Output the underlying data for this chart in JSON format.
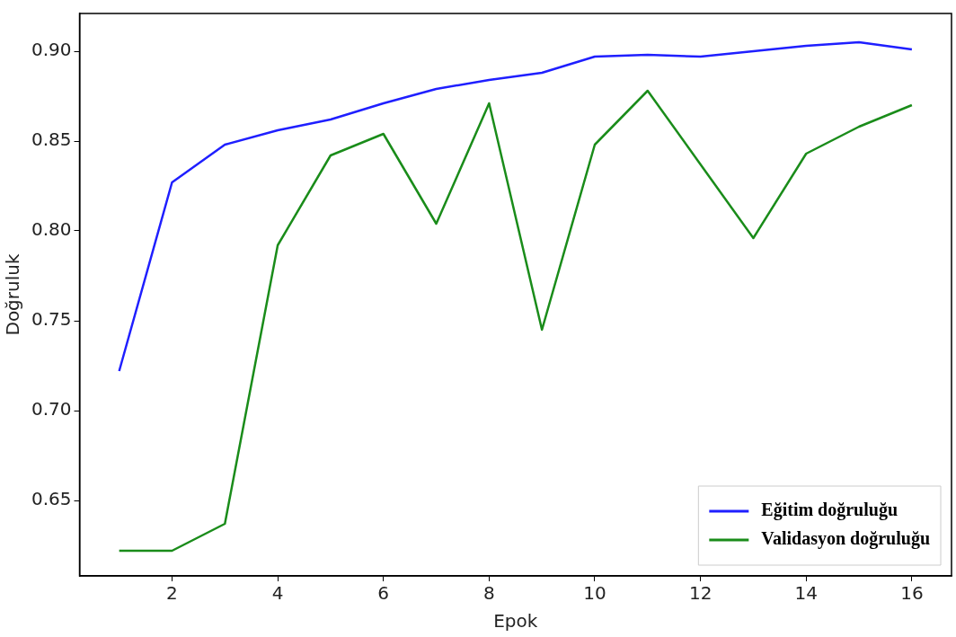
{
  "chart_data": {
    "type": "line",
    "xlabel": "Epok",
    "ylabel": "Doğruluk",
    "x": [
      1,
      2,
      3,
      4,
      5,
      6,
      7,
      8,
      9,
      10,
      11,
      12,
      13,
      14,
      15,
      16
    ],
    "series": [
      {
        "name": "Eğitim doğruluğu",
        "color": "#1f1fff",
        "values": [
          0.722,
          0.827,
          0.848,
          0.856,
          0.862,
          0.871,
          0.879,
          0.884,
          0.888,
          0.897,
          0.898,
          0.897,
          0.9,
          0.903,
          0.905,
          0.901
        ]
      },
      {
        "name": "Validasyon doğruluğu",
        "color": "#1a8c1a",
        "values": [
          0.622,
          0.622,
          0.637,
          0.792,
          0.842,
          0.854,
          0.804,
          0.871,
          0.745,
          0.848,
          0.878,
          0.837,
          0.796,
          0.843,
          0.858,
          0.87
        ]
      }
    ],
    "xlim": [
      0.25,
      16.75
    ],
    "xticks": [
      2,
      4,
      6,
      8,
      10,
      12,
      14,
      16
    ],
    "ylim": [
      0.608,
      0.921
    ],
    "yticks": [
      0.65,
      {
        "value": 0.7,
        "label": "0.70"
      },
      0.75,
      {
        "value": 0.8,
        "label": "0.80"
      },
      0.85,
      {
        "value": 0.9,
        "label": "0.90"
      }
    ],
    "legend": "bottom right",
    "grid": false,
    "marker": "none",
    "line_style": "solid"
  }
}
